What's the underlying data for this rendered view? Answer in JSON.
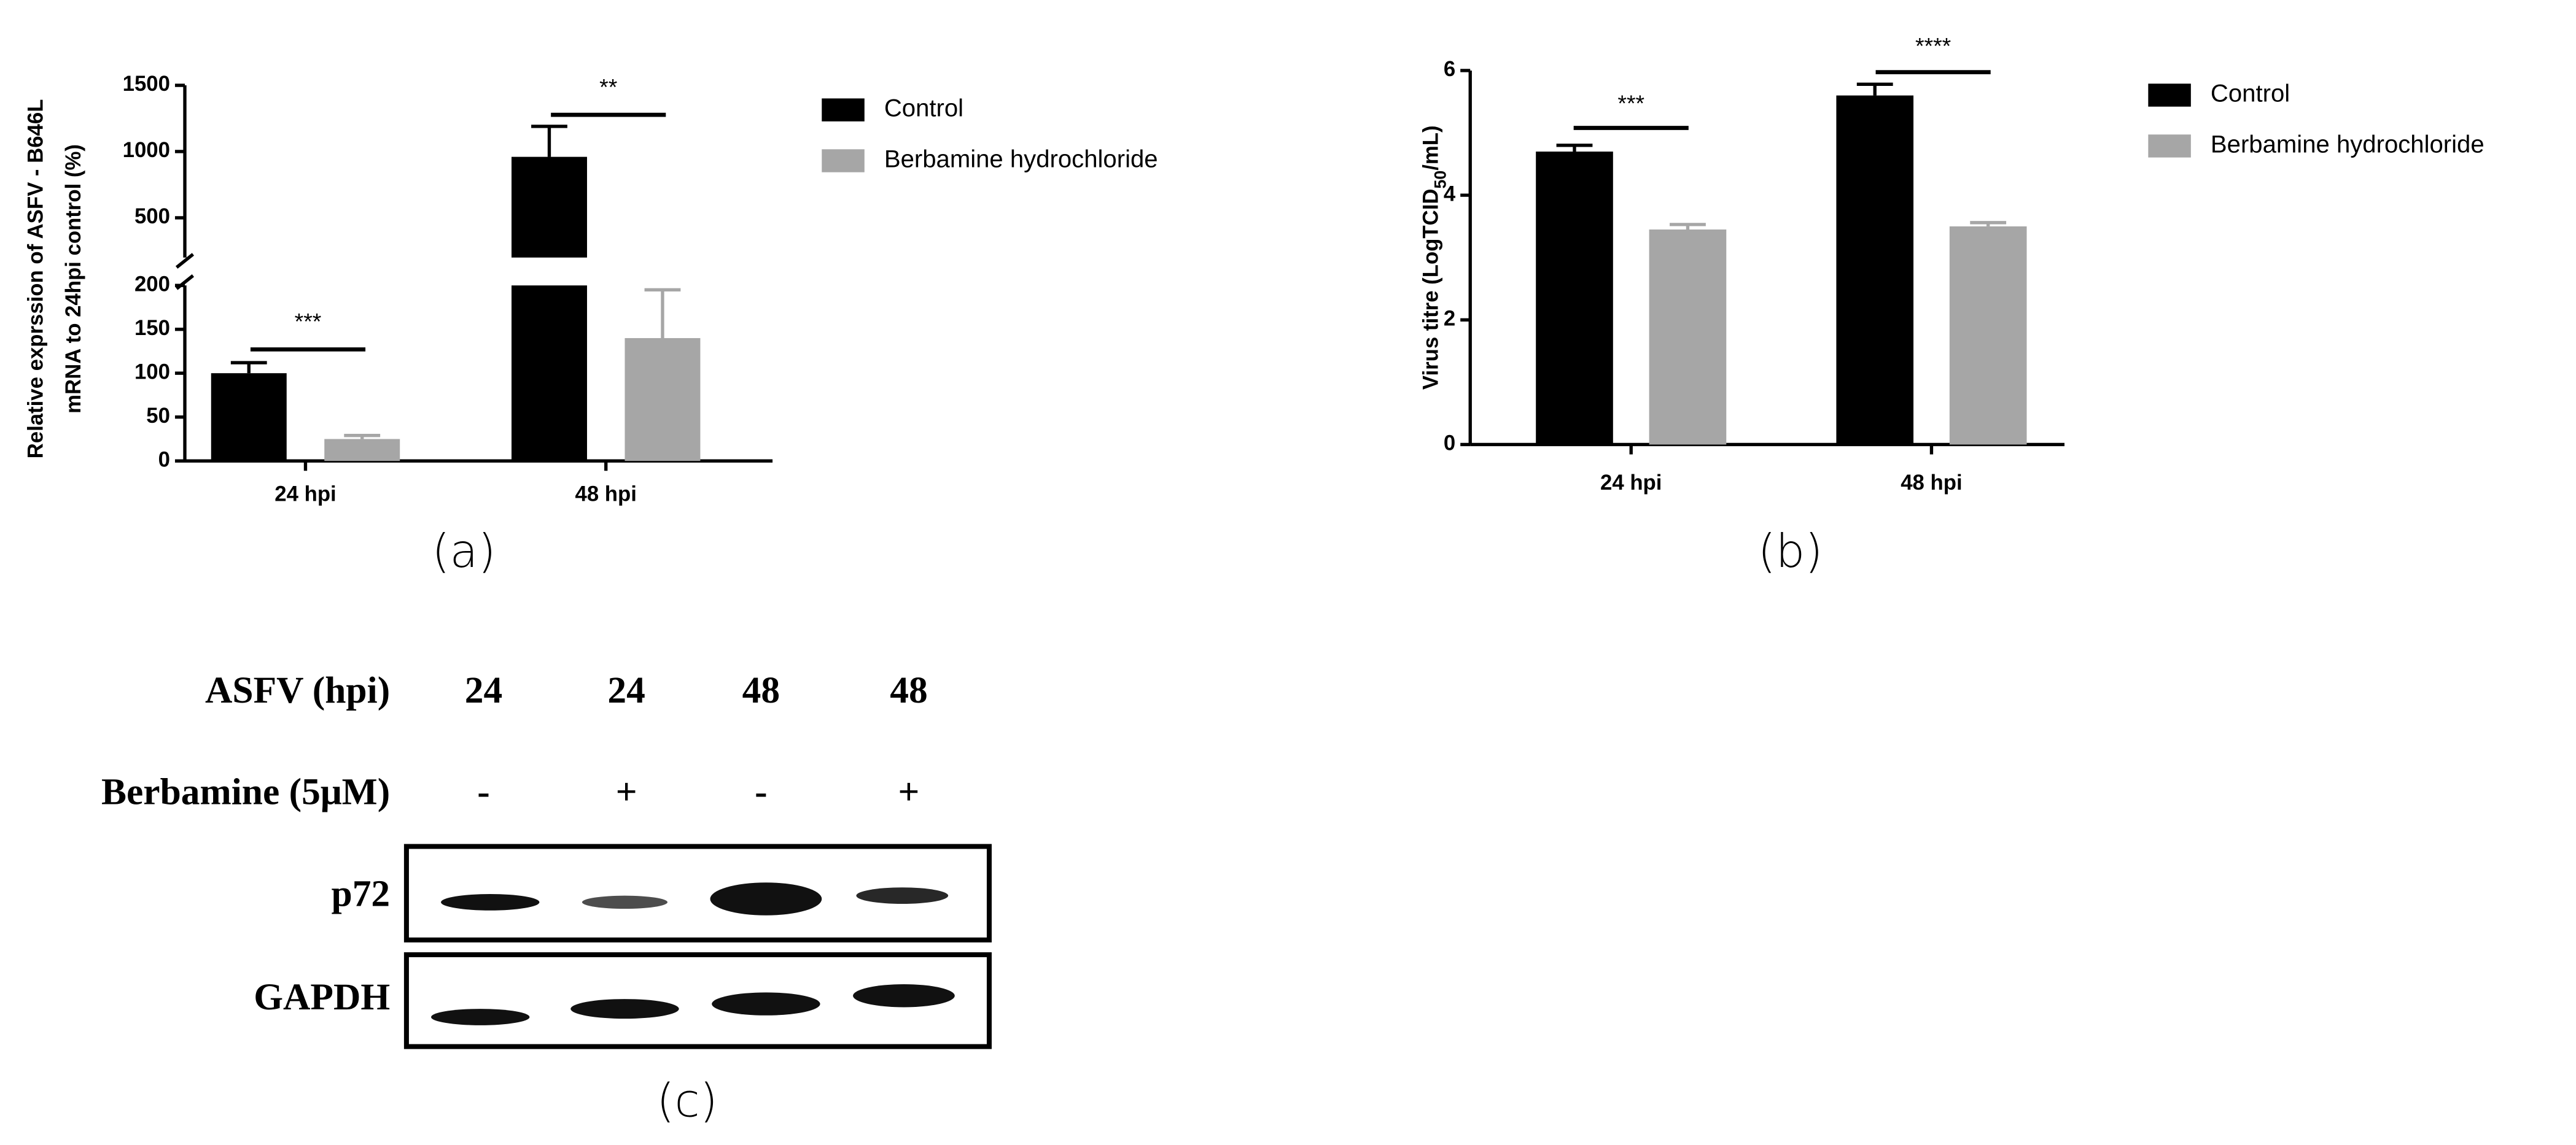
{
  "chart_data": [
    {
      "type": "bar",
      "panel_label": "(a)",
      "y_label": [
        "Relative exprssion of ASFV - B646L",
        "mRNA to 24hpi control (%)"
      ],
      "categories": [
        "24 hpi",
        "48 hpi"
      ],
      "series": [
        {
          "name": "Control",
          "color": "#000000",
          "values": [
            100,
            960
          ],
          "errors": [
            12,
            230
          ]
        },
        {
          "name": "Berbamine hydrochloride",
          "color": "#a6a6a6",
          "values": [
            25,
            140
          ],
          "errors": [
            4,
            55
          ]
        }
      ],
      "annotations": [
        "***",
        "**"
      ],
      "ylim": [
        0,
        1500
      ],
      "y_break": 200,
      "yticks": [
        0,
        50,
        100,
        150,
        200,
        500,
        1000,
        1500
      ]
    },
    {
      "type": "bar",
      "panel_label": "(b)",
      "y_label_parts": [
        "Virus titre (LogTCID",
        "50",
        "/mL)"
      ],
      "categories": [
        "24 hpi",
        "48 hpi"
      ],
      "series": [
        {
          "name": "Control",
          "color": "#000000",
          "values": [
            4.7,
            5.6
          ],
          "errors": [
            0.1,
            0.18
          ]
        },
        {
          "name": "Berbamine hydrochloride",
          "color": "#a6a6a6",
          "values": [
            3.45,
            3.5
          ],
          "errors": [
            0.08,
            0.06
          ]
        }
      ],
      "annotations": [
        "***",
        "****"
      ],
      "ylim": [
        0,
        6
      ],
      "yticks": [
        0,
        2,
        4,
        6
      ]
    }
  ],
  "blot": {
    "panel_label": "(c)",
    "header_rows": [
      {
        "label": "ASFV (hpi)",
        "lanes": [
          "24",
          "24",
          "48",
          "48"
        ]
      },
      {
        "label": "Berbamine (5μM)",
        "lanes": [
          "-",
          "+",
          "-",
          "+"
        ]
      }
    ],
    "bands": [
      "p72",
      "GAPDH"
    ]
  }
}
